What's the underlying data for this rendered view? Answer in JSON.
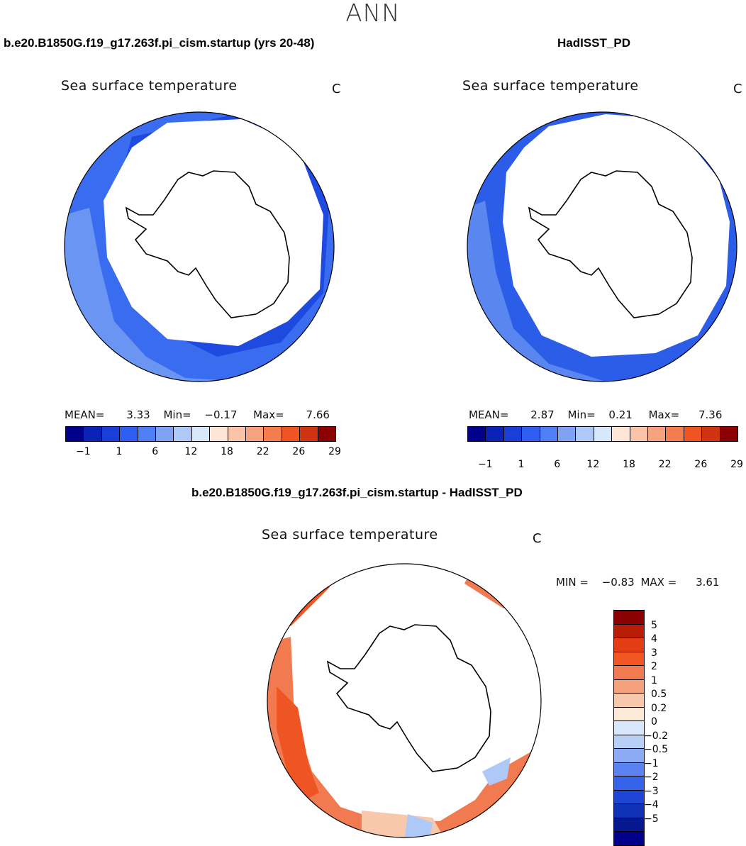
{
  "season": "ANN",
  "panels": {
    "model": {
      "case": "b.e20.B1850G.f19_g17.263f.pi_cism.startup (yrs 20-48)",
      "title": "Sea surface temperature",
      "units": "C",
      "mean_label": "MEAN=",
      "mean": "3.33",
      "min_label": "Min=",
      "min": "−0.17",
      "max_label": "Max=",
      "max": "7.66"
    },
    "obs": {
      "case": "HadISST_PD",
      "title": "Sea surface temperature",
      "units": "C",
      "mean_label": "MEAN=",
      "mean": "2.87",
      "min_label": "Min=",
      "min": "0.21",
      "max_label": "Max=",
      "max": "7.36"
    },
    "diff": {
      "case": "b.e20.B1850G.f19_g17.263f.pi_cism.startup - HadISST_PD",
      "title": "Sea surface temperature",
      "units": "C",
      "min_label": "MIN =",
      "min": "−0.83",
      "max_label": "MAX =",
      "max": "3.61"
    }
  },
  "colorbar_abs": {
    "colors": [
      "#00008b",
      "#0a22b5",
      "#1a3fd8",
      "#2e5ef0",
      "#4f7ff4",
      "#7fa2f4",
      "#aec8f7",
      "#d8e8fb",
      "#fde6d6",
      "#fbc4a8",
      "#f7a27e",
      "#f47d4f",
      "#ee5522",
      "#cf3311",
      "#8b0000"
    ],
    "ticks": [
      "−1",
      "1",
      "6",
      "12",
      "18",
      "22",
      "26",
      "29"
    ]
  },
  "colorbar_diff": {
    "colors": [
      "#8b0000",
      "#b81e05",
      "#e43c13",
      "#f25422",
      "#f27a50",
      "#f5a17c",
      "#f8c8ac",
      "#fde9d8",
      "#d7e6fb",
      "#b8cff7",
      "#8daaf4",
      "#5a82f0",
      "#3563ea",
      "#1e46d6",
      "#1030b6",
      "#06188f",
      "#00008b"
    ],
    "ticks": [
      "5",
      "4",
      "3",
      "2",
      "1",
      "0.5",
      "0.2",
      "0",
      "−0.2",
      "−0.5",
      "−1",
      "−2",
      "−3",
      "−4",
      "−5"
    ]
  },
  "map_colors": {
    "ocean_model": "#3a6cf0",
    "ocean_model_warm": "#6a95f3",
    "ocean_model_cold": "#1f4ae0",
    "ocean_obs": "#2c5de8",
    "ocean_obs_warm": "#5a86f0",
    "diff_pos_strong": "#ee5522",
    "diff_pos": "#f27a50",
    "diff_pos_weak": "#f8c8ac",
    "diff_neg": "#aec8f7"
  }
}
